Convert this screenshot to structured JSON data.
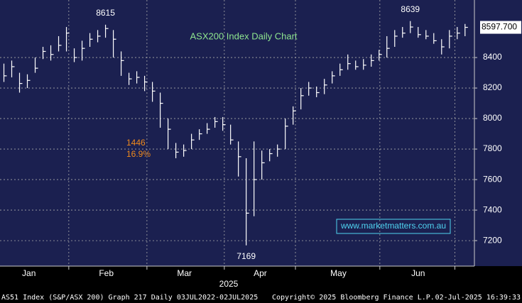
{
  "chart_data": {
    "type": "ohlc",
    "title": "ASX200 Index Daily Chart",
    "ylim": [
      7033,
      8777
    ],
    "yticks": [
      7200,
      7400,
      7600,
      7800,
      8000,
      8200,
      8400
    ],
    "xlim": [
      -0.5,
      60.2
    ],
    "xticks": [
      {
        "value": 3.2,
        "label": "Jan"
      },
      {
        "value": 13.1,
        "label": "Feb"
      },
      {
        "value": 23.1,
        "label": "Mar"
      },
      {
        "value": 32.8,
        "label": "Apr"
      },
      {
        "value": 42.8,
        "label": "May"
      },
      {
        "value": 53.0,
        "label": "Jun"
      }
    ],
    "xgrid": [
      8.3,
      18.3,
      28.2,
      37.3,
      48.1,
      57.7
    ],
    "year_label": "2025",
    "grid": true,
    "color": "#ffffff",
    "high": [
      8360,
      8380,
      8300,
      8290,
      8400,
      8470,
      8480,
      8540,
      8600,
      8460,
      8510,
      8560,
      8580,
      8615,
      8580,
      8440,
      8300,
      8310,
      8280,
      8240,
      8170,
      8000,
      7840,
      7830,
      7900,
      7930,
      7970,
      8010,
      8010,
      7960,
      7850,
      7740,
      7850,
      7790,
      7800,
      7830,
      8000,
      8080,
      8200,
      8240,
      8210,
      8260,
      8310,
      8360,
      8420,
      8380,
      8390,
      8420,
      8450,
      8540,
      8580,
      8600,
      8639,
      8600,
      8580,
      8560,
      8520,
      8580,
      8600,
      8620
    ],
    "low": [
      8240,
      8270,
      8170,
      8200,
      8300,
      8390,
      8380,
      8440,
      8440,
      8370,
      8380,
      8470,
      8500,
      8530,
      8400,
      8280,
      8220,
      8230,
      8180,
      8110,
      7940,
      7800,
      7740,
      7750,
      7800,
      7860,
      7900,
      7940,
      7920,
      7830,
      7620,
      7169,
      7360,
      7600,
      7720,
      7750,
      7800,
      7960,
      8060,
      8150,
      8140,
      8160,
      8230,
      8280,
      8320,
      8320,
      8320,
      8340,
      8380,
      8400,
      8470,
      8530,
      8560,
      8530,
      8520,
      8490,
      8420,
      8460,
      8520,
      8540
    ],
    "close": [
      8280,
      8340,
      8230,
      8250,
      8330,
      8440,
      8420,
      8480,
      8560,
      8400,
      8460,
      8520,
      8540,
      8590,
      8520,
      8380,
      8260,
      8270,
      8240,
      8180,
      8100,
      7930,
      7780,
      7790,
      7860,
      7900,
      7930,
      7980,
      7960,
      7860,
      7750,
      7380,
      7600,
      7710,
      7770,
      7800,
      7950,
      8050,
      8150,
      8200,
      8170,
      8220,
      8280,
      8320,
      8360,
      8340,
      8350,
      8380,
      8420,
      8460,
      8540,
      8560,
      8600,
      8550,
      8540,
      8510,
      8470,
      8540,
      8560,
      8597.7
    ],
    "peaks": [
      {
        "x": 13,
        "value": 8615,
        "position": "above"
      },
      {
        "x": 52,
        "value": 8639,
        "position": "above"
      },
      {
        "x": 31,
        "value": 7169,
        "position": "below"
      }
    ],
    "last_price": {
      "value": 8597.7,
      "label": "8597.700"
    },
    "annotations": [
      "1446",
      "16.9%"
    ],
    "watermark": "www.marketmatters.com.au",
    "footer": {
      "left": "AS51 Index (S&P/ASX 200) Graph 217  Daily 03JUL2022-02JUL2025",
      "center": "Copyright© 2025 Bloomberg Finance L.P.",
      "right": "02-Jul-2025 16:39:33"
    }
  }
}
